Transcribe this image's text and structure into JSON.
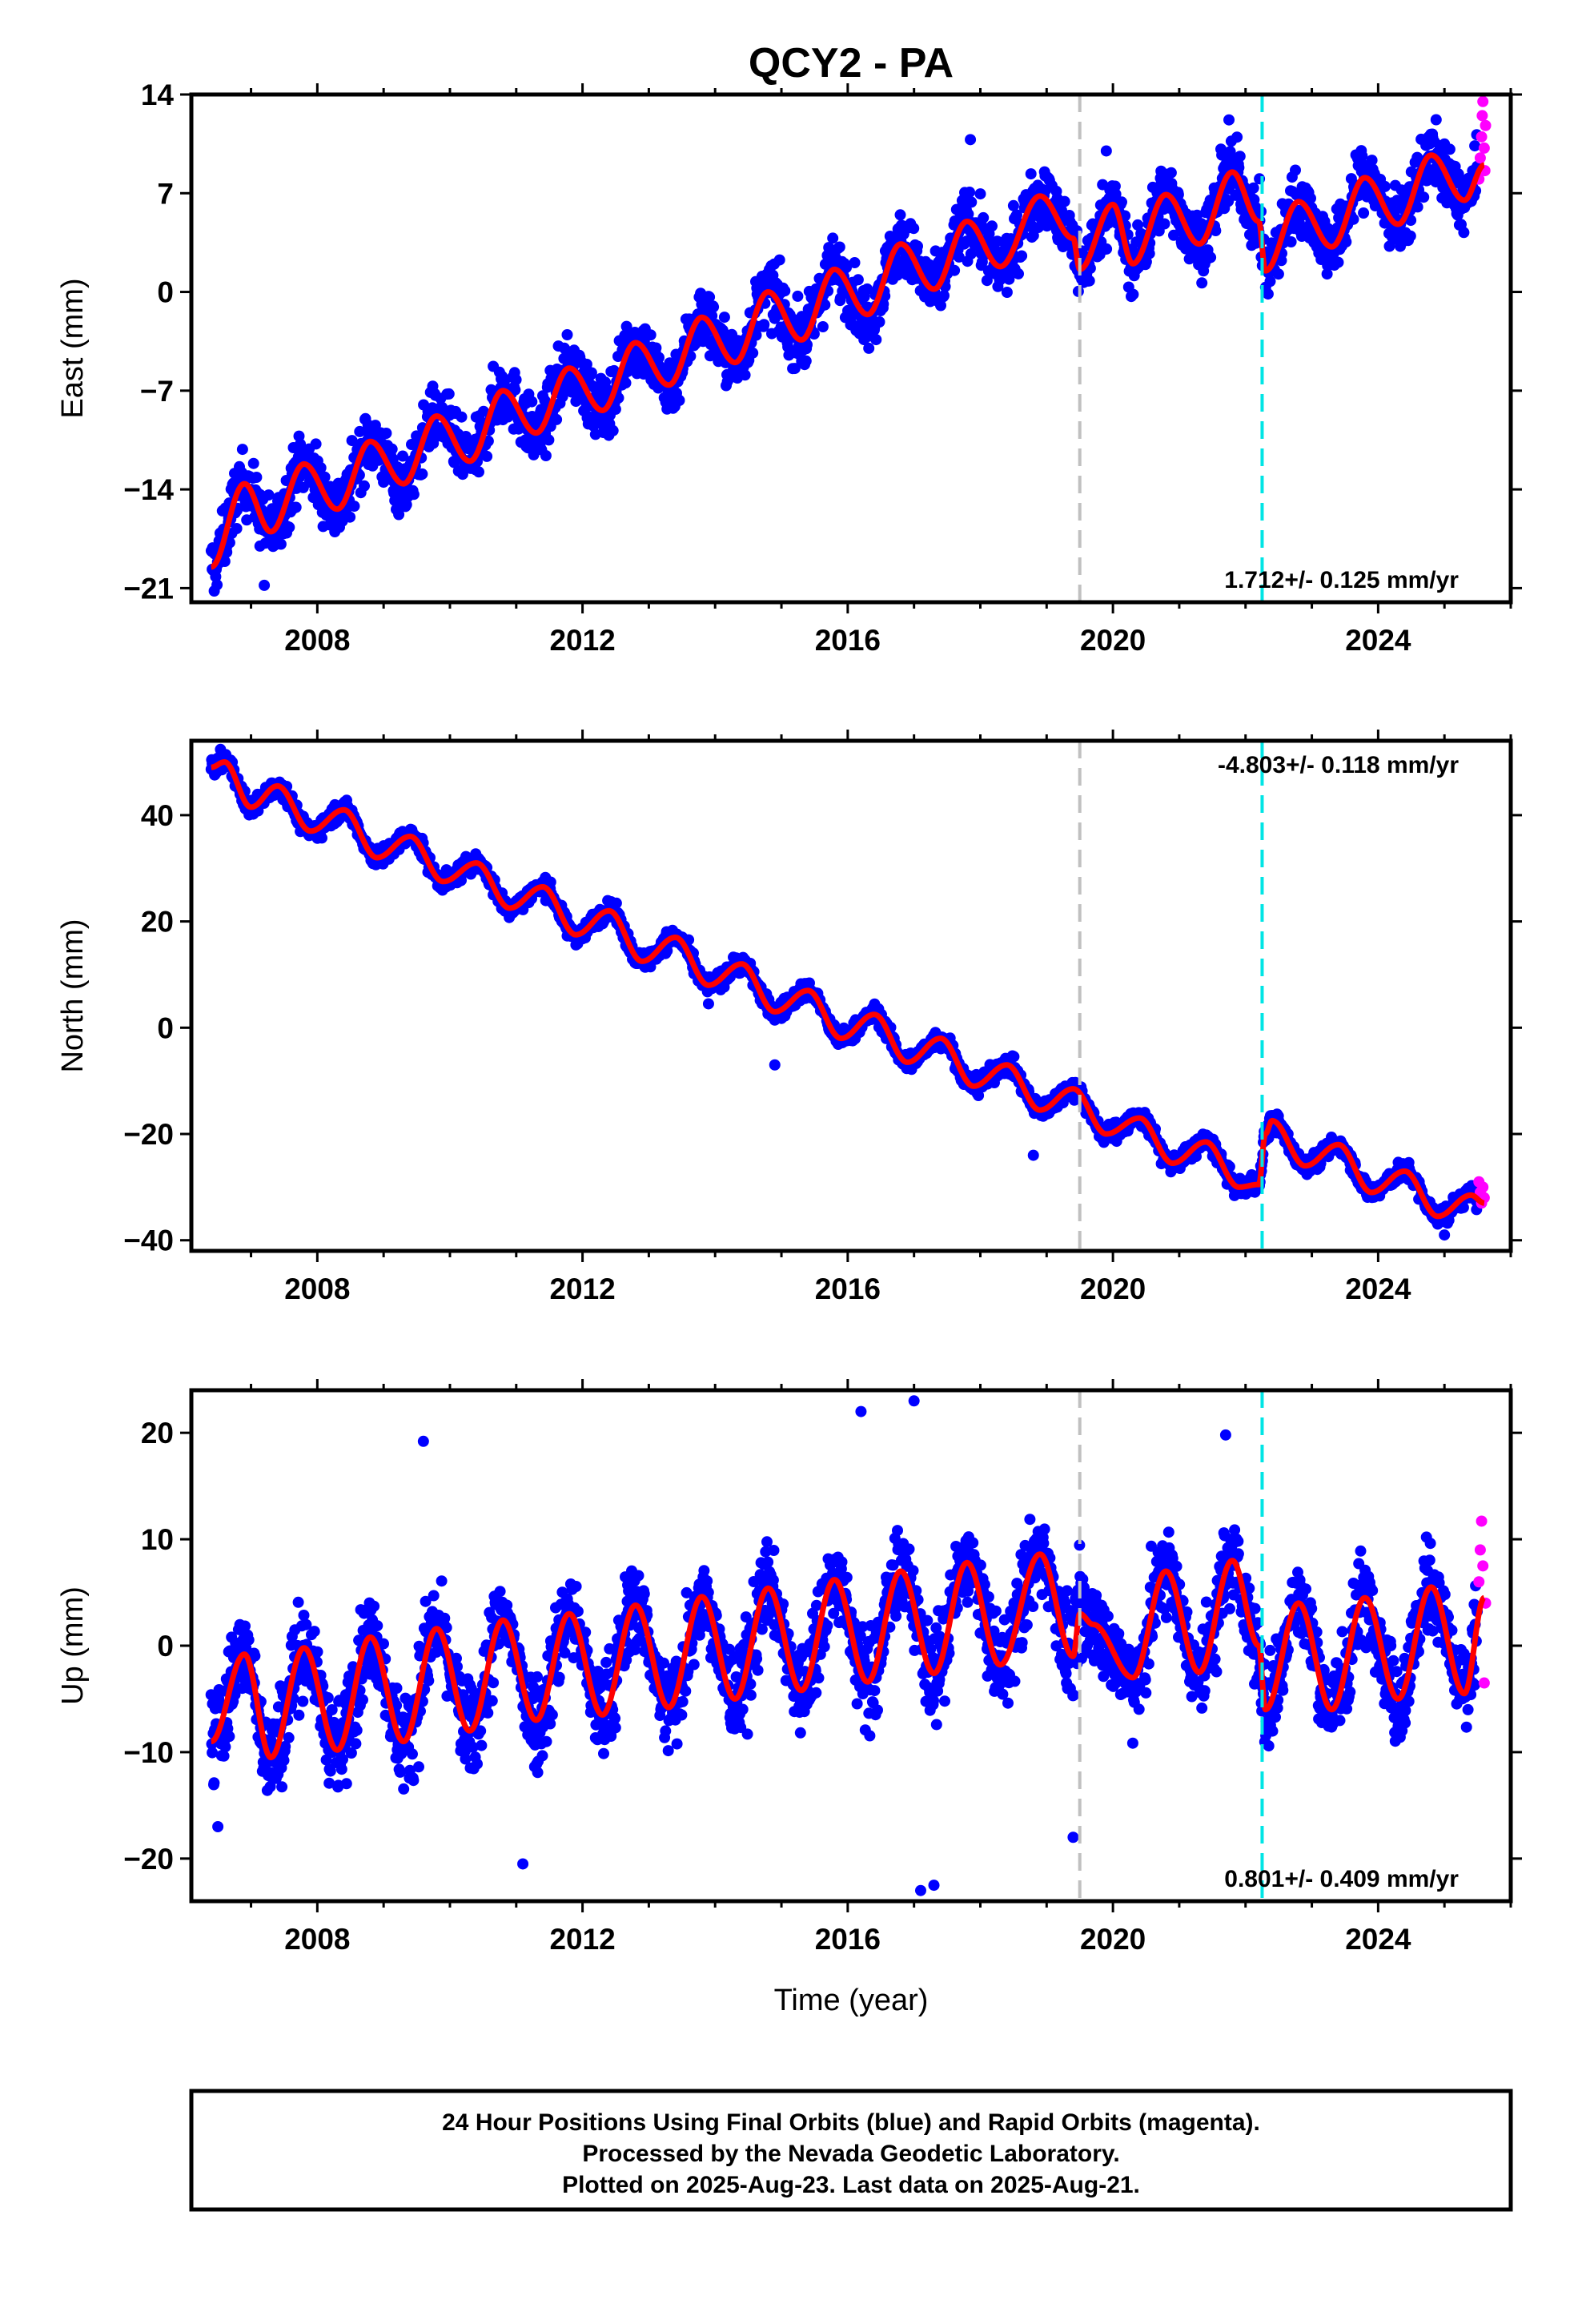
{
  "chart_data": {
    "type": "scatter",
    "title": "QCY2 - PA",
    "xlabel": "Time (year)",
    "xlim": [
      2006.1,
      2026.0
    ],
    "xticks": [
      "2008",
      "2012",
      "2016",
      "2020",
      "2024"
    ],
    "xtick_values": [
      2008,
      2012,
      2016,
      2020,
      2024
    ],
    "vertical_lines": [
      {
        "x": 2019.5,
        "color": "#c0c0c0",
        "style": "dashed"
      },
      {
        "x": 2022.25,
        "color": "#00e5e5",
        "style": "dashed"
      }
    ],
    "series_colors": {
      "final": "#0000ff",
      "rapid": "#ff00ff",
      "model": "#ff0000"
    },
    "panels": [
      {
        "key": "east",
        "ylabel": "East (mm)",
        "ylim": [
          -22,
          14
        ],
        "yticks": [
          "14",
          "7",
          "0",
          "−7",
          "−14",
          "−21"
        ],
        "ytick_values": [
          14,
          7,
          0,
          -7,
          -14,
          -21
        ],
        "rate_label": "1.712+/- 0.125 mm/yr",
        "rate_position": "bottom-right",
        "model_points": [
          [
            2006.4,
            -19.5
          ],
          [
            2006.9,
            -13.6
          ],
          [
            2007.3,
            -17.0
          ],
          [
            2007.8,
            -12.2
          ],
          [
            2008.3,
            -15.4
          ],
          [
            2008.8,
            -10.6
          ],
          [
            2009.3,
            -13.6
          ],
          [
            2009.8,
            -8.8
          ],
          [
            2010.3,
            -12.0
          ],
          [
            2010.8,
            -7.0
          ],
          [
            2011.3,
            -10.0
          ],
          [
            2011.8,
            -5.4
          ],
          [
            2012.3,
            -8.4
          ],
          [
            2012.8,
            -3.6
          ],
          [
            2013.3,
            -6.6
          ],
          [
            2013.8,
            -1.8
          ],
          [
            2014.3,
            -5.0
          ],
          [
            2014.8,
            0.0
          ],
          [
            2015.3,
            -3.4
          ],
          [
            2015.8,
            1.6
          ],
          [
            2016.3,
            -1.6
          ],
          [
            2016.8,
            3.4
          ],
          [
            2017.3,
            0.2
          ],
          [
            2017.8,
            5.0
          ],
          [
            2018.3,
            1.8
          ],
          [
            2018.9,
            6.8
          ],
          [
            2019.4,
            3.8
          ],
          [
            2019.5,
            1.6
          ],
          [
            2020.0,
            6.2
          ],
          [
            2020.3,
            2.0
          ],
          [
            2020.8,
            6.9
          ],
          [
            2021.3,
            3.4
          ],
          [
            2021.8,
            8.5
          ],
          [
            2022.2,
            5.0
          ],
          [
            2022.3,
            1.5
          ],
          [
            2022.8,
            6.4
          ],
          [
            2023.3,
            3.2
          ],
          [
            2023.8,
            8.1
          ],
          [
            2024.3,
            4.8
          ],
          [
            2024.8,
            9.7
          ],
          [
            2025.3,
            6.5
          ],
          [
            2025.6,
            9.0
          ]
        ],
        "scatter_jitter": 2.0,
        "rapid_points": [
          [
            2025.52,
            8.0
          ],
          [
            2025.54,
            9.5
          ],
          [
            2025.56,
            11.0
          ],
          [
            2025.57,
            12.5
          ],
          [
            2025.58,
            13.5
          ],
          [
            2025.6,
            10.2
          ],
          [
            2025.61,
            8.6
          ],
          [
            2025.62,
            11.8
          ]
        ],
        "outliers": [
          [
            2017.85,
            10.8
          ],
          [
            2021.75,
            12.2
          ],
          [
            2019.9,
            10.0
          ],
          [
            2007.2,
            -20.8
          ]
        ]
      },
      {
        "key": "north",
        "ylabel": "North (mm)",
        "ylim": [
          -42,
          54
        ],
        "yticks": [
          "40",
          "20",
          "0",
          "−20",
          "−40"
        ],
        "ytick_values": [
          40,
          20,
          0,
          -20,
          -40
        ],
        "rate_label": "-4.803+/- 0.118 mm/yr",
        "rate_position": "top-right",
        "model_points": [
          [
            2006.4,
            49.0
          ],
          [
            2006.6,
            50.0
          ],
          [
            2007.0,
            41.5
          ],
          [
            2007.4,
            45.5
          ],
          [
            2007.9,
            37.0
          ],
          [
            2008.4,
            41.0
          ],
          [
            2008.9,
            32.0
          ],
          [
            2009.4,
            36.0
          ],
          [
            2009.9,
            27.5
          ],
          [
            2010.4,
            31.0
          ],
          [
            2010.9,
            22.5
          ],
          [
            2011.4,
            26.5
          ],
          [
            2011.9,
            17.5
          ],
          [
            2012.4,
            22.0
          ],
          [
            2012.9,
            12.5
          ],
          [
            2013.4,
            17.0
          ],
          [
            2013.9,
            8.0
          ],
          [
            2014.4,
            12.0
          ],
          [
            2014.9,
            3.0
          ],
          [
            2015.4,
            7.0
          ],
          [
            2015.9,
            -2.0
          ],
          [
            2016.4,
            2.5
          ],
          [
            2016.9,
            -6.5
          ],
          [
            2017.4,
            -2.0
          ],
          [
            2017.9,
            -11.0
          ],
          [
            2018.4,
            -7.0
          ],
          [
            2018.9,
            -15.5
          ],
          [
            2019.4,
            -11.5
          ],
          [
            2019.9,
            -20.0
          ],
          [
            2020.4,
            -17.0
          ],
          [
            2020.9,
            -25.5
          ],
          [
            2021.4,
            -21.5
          ],
          [
            2021.9,
            -30.0
          ],
          [
            2022.2,
            -29.5
          ],
          [
            2022.3,
            -20.0
          ],
          [
            2022.4,
            -17.5
          ],
          [
            2022.9,
            -26.0
          ],
          [
            2023.4,
            -22.0
          ],
          [
            2023.9,
            -31.0
          ],
          [
            2024.4,
            -27.0
          ],
          [
            2024.9,
            -35.5
          ],
          [
            2025.4,
            -31.5
          ],
          [
            2025.6,
            -33.0
          ]
        ],
        "scatter_jitter": 1.6,
        "rapid_points": [
          [
            2025.52,
            -29.0
          ],
          [
            2025.54,
            -31.0
          ],
          [
            2025.56,
            -33.0
          ],
          [
            2025.58,
            -30.0
          ],
          [
            2025.6,
            -32.0
          ]
        ],
        "outliers": [
          [
            2013.9,
            4.5
          ],
          [
            2014.9,
            -7.0
          ],
          [
            2018.8,
            -24.0
          ],
          [
            2025.0,
            -39.0
          ]
        ]
      },
      {
        "key": "up",
        "ylabel": "Up (mm)",
        "ylim": [
          -24,
          24
        ],
        "yticks": [
          "20",
          "10",
          "0",
          "−10",
          "−20"
        ],
        "ytick_values": [
          20,
          10,
          0,
          -10,
          -20
        ],
        "rate_label": "0.801+/- 0.409 mm/yr",
        "rate_position": "bottom-right",
        "model_points": [
          [
            2006.4,
            -9.0
          ],
          [
            2006.9,
            -0.8
          ],
          [
            2007.3,
            -10.5
          ],
          [
            2007.8,
            -0.2
          ],
          [
            2008.3,
            -9.8
          ],
          [
            2008.8,
            0.8
          ],
          [
            2009.3,
            -9.0
          ],
          [
            2009.8,
            1.6
          ],
          [
            2010.3,
            -8.0
          ],
          [
            2010.8,
            2.4
          ],
          [
            2011.3,
            -7.0
          ],
          [
            2011.8,
            3.0
          ],
          [
            2012.3,
            -6.5
          ],
          [
            2012.8,
            3.8
          ],
          [
            2013.3,
            -5.8
          ],
          [
            2013.8,
            4.6
          ],
          [
            2014.3,
            -5.0
          ],
          [
            2014.8,
            5.4
          ],
          [
            2015.3,
            -4.2
          ],
          [
            2015.8,
            6.2
          ],
          [
            2016.3,
            -3.4
          ],
          [
            2016.8,
            7.0
          ],
          [
            2017.3,
            -2.6
          ],
          [
            2017.8,
            7.8
          ],
          [
            2018.3,
            -1.8
          ],
          [
            2018.9,
            8.6
          ],
          [
            2019.4,
            -1.0
          ],
          [
            2019.5,
            3.0
          ],
          [
            2019.7,
            2.0
          ],
          [
            2020.3,
            -3.0
          ],
          [
            2020.8,
            7.0
          ],
          [
            2021.3,
            -2.5
          ],
          [
            2021.8,
            8.0
          ],
          [
            2022.2,
            0.0
          ],
          [
            2022.3,
            -6.0
          ],
          [
            2022.8,
            4.0
          ],
          [
            2023.3,
            -6.0
          ],
          [
            2023.8,
            4.5
          ],
          [
            2024.3,
            -5.0
          ],
          [
            2024.8,
            5.5
          ],
          [
            2025.3,
            -4.5
          ],
          [
            2025.6,
            4.5
          ]
        ],
        "scatter_jitter": 4.5,
        "rapid_points": [
          [
            2025.52,
            6.0
          ],
          [
            2025.54,
            9.0
          ],
          [
            2025.56,
            11.7
          ],
          [
            2025.58,
            7.5
          ],
          [
            2025.6,
            -3.5
          ],
          [
            2025.62,
            4.0
          ]
        ],
        "outliers": [
          [
            2016.2,
            22.0
          ],
          [
            2017.0,
            23.0
          ],
          [
            2017.3,
            -22.5
          ],
          [
            2017.1,
            -23.0
          ],
          [
            2009.6,
            19.2
          ],
          [
            2011.1,
            -20.5
          ],
          [
            2021.7,
            19.8
          ],
          [
            2006.5,
            -17.0
          ],
          [
            2019.4,
            -18.0
          ]
        ]
      }
    ]
  },
  "footer": {
    "line1": "24 Hour Positions Using Final Orbits (blue) and Rapid Orbits (magenta).",
    "line2": "Processed by the Nevada Geodetic Laboratory.",
    "line3": "Plotted on 2025-Aug-23. Last data on 2025-Aug-21."
  }
}
